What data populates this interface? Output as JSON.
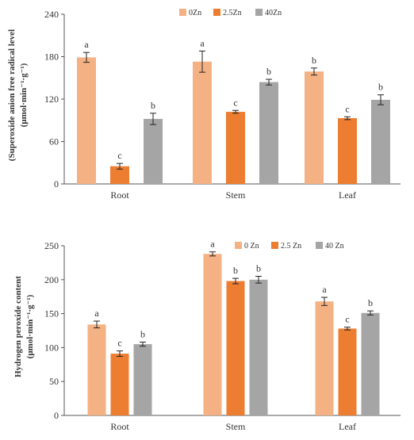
{
  "chart_data": [
    {
      "type": "bar",
      "categories": [
        "Root",
        "Stem",
        "Leaf"
      ],
      "series": [
        {
          "name": "0Zn",
          "color": "#f4b183",
          "values": [
            179,
            173,
            159
          ],
          "errors": [
            7,
            15,
            5
          ],
          "letters": [
            "a",
            "a",
            "b"
          ]
        },
        {
          "name": "2.5Zn",
          "color": "#ed7d31",
          "values": [
            25,
            102,
            93
          ],
          "errors": [
            4,
            2,
            2
          ],
          "letters": [
            "c",
            "c",
            "c"
          ]
        },
        {
          "name": "40Zn",
          "color": "#a5a5a5",
          "values": [
            92,
            144,
            119
          ],
          "errors": [
            8,
            4,
            7
          ],
          "letters": [
            "b",
            "b",
            "b"
          ]
        }
      ],
      "ylim": [
        0,
        240
      ],
      "yticks": [
        0,
        60,
        120,
        180,
        240
      ],
      "ylabel_line1": "(Superoxide anion free radical level",
      "ylabel_line2": "(μmol·min⁻¹·g⁻¹)",
      "legend_position": "top-center",
      "grid": false
    },
    {
      "type": "bar",
      "categories": [
        "Root",
        "Stem",
        "Leaf"
      ],
      "series": [
        {
          "name": "0 Zn",
          "color": "#f4b183",
          "values": [
            134,
            238,
            168
          ],
          "errors": [
            5,
            3,
            6
          ],
          "letters": [
            "a",
            "a",
            "a"
          ]
        },
        {
          "name": "2.5 Zn",
          "color": "#ed7d31",
          "values": [
            91,
            198,
            128
          ],
          "errors": [
            4,
            4,
            2
          ],
          "letters": [
            "c",
            "b",
            "c"
          ]
        },
        {
          "name": "40 Zn",
          "color": "#a5a5a5",
          "values": [
            105,
            200,
            151
          ],
          "errors": [
            3,
            5,
            3
          ],
          "letters": [
            "b",
            "b",
            "b"
          ]
        }
      ],
      "ylim": [
        0,
        250
      ],
      "yticks": [
        0,
        50,
        100,
        150,
        200,
        250
      ],
      "ylabel_line1": "Hydrogen peroxide content",
      "ylabel_line2": "(μmol·min⁻¹·g⁻¹)",
      "legend_position": "top-center",
      "grid": false
    }
  ]
}
